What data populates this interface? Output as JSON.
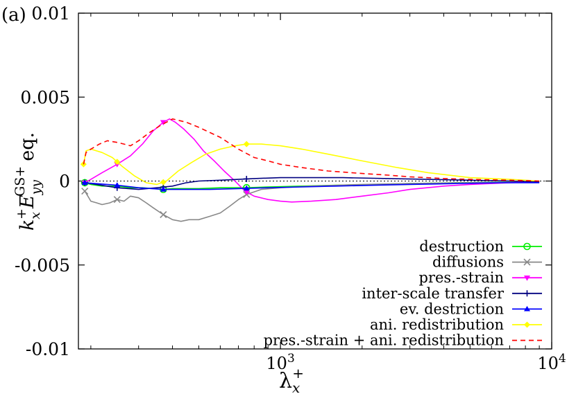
{
  "panel_label": "(a)",
  "chart_data": {
    "type": "line",
    "xscale": "log",
    "xlim": [
      180,
      10000
    ],
    "ylim": [
      -0.01,
      0.01
    ],
    "xlabel": "λx+",
    "ylabel": "kx+ Eyy GS+ eq.",
    "ylabel_parts": {
      "k": "k",
      "x": "x",
      "plus": "+",
      "E": "E",
      "yy": "yy",
      "gs": "GS+",
      "eq": "eq."
    },
    "xlabel_parts": {
      "lambda": "λ",
      "x": "x",
      "plus": "+"
    },
    "y_ticks": [
      {
        "value": 0.01,
        "label": "0.01"
      },
      {
        "value": 0.005,
        "label": "0.005"
      },
      {
        "value": 0,
        "label": "0"
      },
      {
        "value": -0.005,
        "label": "-0.005"
      },
      {
        "value": -0.01,
        "label": "-0.01"
      }
    ],
    "x_ticks": [
      {
        "value": 1000,
        "label_base": "10",
        "label_exp": "3"
      },
      {
        "value": 10000,
        "label_base": "10",
        "label_exp": "4"
      }
    ],
    "x_minor_ticks": [
      200,
      300,
      400,
      500,
      600,
      700,
      800,
      900,
      2000,
      3000,
      4000,
      5000,
      6000,
      7000,
      8000,
      9000
    ],
    "zero_line": true,
    "legend_position": "bottom-right",
    "series": [
      {
        "name": "destruction",
        "color": "#00ee00",
        "marker": "circle",
        "dash": "",
        "x": [
          190,
          200,
          220,
          250,
          280,
          310,
          340,
          370,
          400,
          450,
          500,
          600,
          750,
          900,
          1200,
          1600,
          2200,
          3000,
          4500,
          6500,
          9000
        ],
        "y": [
          -0.0001,
          -0.0002,
          -0.0003,
          -0.0003,
          -0.0004,
          -0.0004,
          -0.00045,
          -0.0005,
          -0.00045,
          -0.00045,
          -0.00045,
          -0.0004,
          -0.0004,
          -0.00035,
          -0.0003,
          -0.00025,
          -0.0002,
          -0.00015,
          -0.0001,
          -7e-05,
          -5e-05
        ],
        "marker_x": [
          190,
          370,
          750
        ]
      },
      {
        "name": "diffusions",
        "color": "#888888",
        "marker": "cross",
        "dash": "",
        "x": [
          190,
          195,
          200,
          210,
          220,
          235,
          250,
          265,
          280,
          300,
          320,
          340,
          370,
          400,
          430,
          460,
          500,
          550,
          600,
          650,
          700,
          750,
          850,
          1000,
          1300,
          2000,
          3000,
          5000,
          9000
        ],
        "y": [
          -0.0006,
          -0.0009,
          -0.0012,
          -0.0013,
          -0.0014,
          -0.0013,
          -0.0011,
          -0.0012,
          -0.0009,
          -0.001,
          -0.0013,
          -0.0016,
          -0.002,
          -0.0023,
          -0.0024,
          -0.0023,
          -0.0023,
          -0.0021,
          -0.0019,
          -0.0015,
          -0.0011,
          -0.0008,
          -0.0005,
          -0.0004,
          -0.0003,
          -0.0002,
          -0.00015,
          -0.0001,
          -5e-05
        ],
        "marker_x": [
          190,
          250,
          370,
          750
        ]
      },
      {
        "name": "pres.-strain",
        "color": "#ff00ff",
        "marker": "triangle-down",
        "dash": "",
        "x": [
          190,
          200,
          220,
          250,
          280,
          310,
          340,
          370,
          390,
          410,
          440,
          480,
          520,
          570,
          620,
          680,
          740,
          800,
          900,
          1000,
          1100,
          1300,
          1600,
          2000,
          2500,
          3000,
          4000,
          5000,
          7000,
          9000
        ],
        "y": [
          -0.0001,
          0.0001,
          0.0005,
          0.001,
          0.0015,
          0.0022,
          0.003,
          0.0035,
          0.0037,
          0.0035,
          0.0031,
          0.0025,
          0.0018,
          0.0012,
          0.0006,
          0.0,
          -0.0006,
          -0.0009,
          -0.0011,
          -0.0012,
          -0.00125,
          -0.0012,
          -0.0011,
          -0.0009,
          -0.0007,
          -0.0005,
          -0.0003,
          -0.0002,
          -0.0001,
          -5e-05
        ],
        "marker_x": [
          190,
          250,
          370,
          750
        ]
      },
      {
        "name": "inter-scale transfer",
        "color": "#000080",
        "marker": "plus",
        "dash": "",
        "x": [
          190,
          210,
          250,
          300,
          350,
          400,
          450,
          500,
          600,
          700,
          800,
          1000,
          1300,
          1700,
          2500,
          3500,
          5000,
          7000,
          9000
        ],
        "y": [
          -0.0001,
          -0.0002,
          -0.0004,
          -0.0005,
          -0.0004,
          -0.0003,
          -0.0001,
          0.0,
          5e-05,
          0.0001,
          0.00015,
          0.0002,
          0.0002,
          0.0002,
          0.00015,
          0.0001,
          5e-05,
          0.0,
          -5e-05
        ],
        "marker_x": [
          190,
          250,
          370,
          750
        ]
      },
      {
        "name": "ev. destriction",
        "color": "#0000ff",
        "marker": "triangle-up",
        "dash": "",
        "x": [
          190,
          250,
          300,
          370,
          450,
          550,
          700,
          900,
          1200,
          1600,
          2200,
          3000,
          4500,
          6500,
          9000
        ],
        "y": [
          -0.0001,
          -0.00025,
          -0.0004,
          -0.0005,
          -0.0005,
          -0.0005,
          -0.00045,
          -0.0004,
          -0.00035,
          -0.0003,
          -0.00025,
          -0.0002,
          -0.00015,
          -0.0001,
          -0.0001
        ],
        "marker_x": [
          190,
          250,
          370,
          750
        ]
      },
      {
        "name": "ani. redistribution",
        "color": "#ffff00",
        "marker": "diamond",
        "dash": "",
        "x": [
          188,
          192,
          200,
          220,
          240,
          260,
          290,
          320,
          350,
          380,
          420,
          470,
          530,
          600,
          680,
          750,
          850,
          1000,
          1200,
          1500,
          2000,
          2700,
          3500,
          5000,
          7000,
          9000
        ],
        "y": [
          0.001,
          0.0018,
          0.0019,
          0.0017,
          0.0014,
          0.0009,
          0.0003,
          -0.0001,
          -0.0002,
          0.0,
          0.0006,
          0.0011,
          0.0016,
          0.0019,
          0.0021,
          0.0022,
          0.0022,
          0.0021,
          0.0019,
          0.0016,
          0.0012,
          0.0008,
          0.0005,
          0.0002,
          0.0001,
          0.0
        ],
        "marker_x": [
          188,
          250,
          370,
          750
        ]
      },
      {
        "name": "pres.-strain + ani. redistribution",
        "color": "#ff0000",
        "marker": "none",
        "dash": "7,5",
        "x": [
          188,
          192,
          200,
          215,
          230,
          250,
          265,
          280,
          300,
          330,
          360,
          400,
          450,
          500,
          600,
          700,
          800,
          900,
          1000,
          1200,
          1500,
          2000,
          2500,
          3000,
          4000,
          5000,
          7000,
          9000
        ],
        "y": [
          0.001,
          0.0017,
          0.0019,
          0.0022,
          0.0024,
          0.0023,
          0.0022,
          0.0021,
          0.0024,
          0.0029,
          0.0033,
          0.0037,
          0.0035,
          0.0032,
          0.0026,
          0.0019,
          0.0014,
          0.0012,
          0.001,
          0.0008,
          0.0006,
          0.00045,
          0.00035,
          0.00025,
          0.00015,
          0.0001,
          5e-05,
          0.0
        ]
      }
    ]
  }
}
